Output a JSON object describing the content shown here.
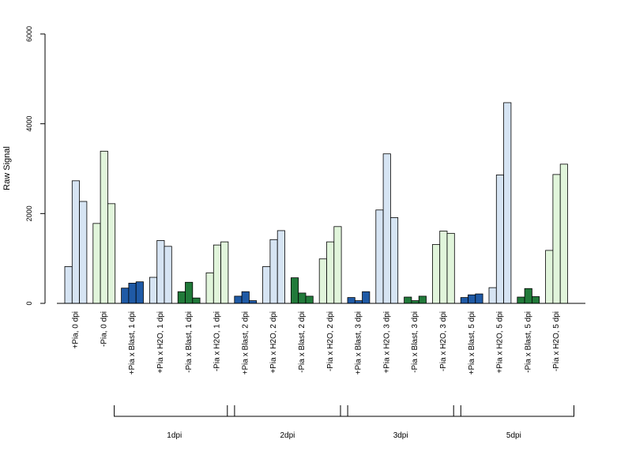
{
  "chart_data": {
    "type": "bar",
    "ylabel": "Raw Signal",
    "xlabel": "",
    "ylim": [
      0,
      6000
    ],
    "yticks": [
      0,
      2000,
      4000,
      6000
    ],
    "bars_per_group": 3,
    "categories": [
      "+Pia, 0 dpi",
      "-Pia, 0 dpi",
      "+Pia x Blast, 1 dpi",
      "+Pia x H2O, 1 dpi",
      "-Pia x Blast, 1 dpi",
      "-Pia x H2O, 1 dpi",
      "+Pia x Blast, 2 dpi",
      "+Pia x H2O, 2 dpi",
      "-Pia x Blast, 2 dpi",
      "-Pia x H2O, 2 dpi",
      "+Pia x Blast, 3 dpi",
      "+Pia x H2O, 3 dpi",
      "-Pia x Blast, 3 dpi",
      "-Pia x H2O, 3 dpi",
      "+Pia x Blast, 5 dpi",
      "+Pia x H2O, 5 dpi",
      "-Pia x Blast, 5 dpi",
      "-Pia x H2O, 5 dpi"
    ],
    "values": [
      [
        820,
        2730,
        2270
      ],
      [
        1780,
        3390,
        2220
      ],
      [
        340,
        450,
        480
      ],
      [
        580,
        1400,
        1270
      ],
      [
        260,
        470,
        120
      ],
      [
        680,
        1300,
        1370
      ],
      [
        160,
        260,
        60
      ],
      [
        820,
        1420,
        1620
      ],
      [
        570,
        230,
        160
      ],
      [
        990,
        1370,
        1710
      ],
      [
        130,
        60,
        260
      ],
      [
        2080,
        3330,
        1910
      ],
      [
        140,
        60,
        160
      ],
      [
        1310,
        1610,
        1560
      ],
      [
        130,
        190,
        210
      ],
      [
        350,
        2860,
        4470
      ],
      [
        140,
        330,
        150
      ],
      [
        1180,
        2870,
        3100
      ]
    ],
    "colors": [
      "#d6e4f3",
      "#e1f5db",
      "#1f5aa6",
      "#d6e4f3",
      "#217a3a",
      "#e1f5db",
      "#1f5aa6",
      "#d6e4f3",
      "#217a3a",
      "#e1f5db",
      "#1f5aa6",
      "#d6e4f3",
      "#217a3a",
      "#e1f5db",
      "#1f5aa6",
      "#d6e4f3",
      "#217a3a",
      "#e1f5db"
    ],
    "brackets": [
      {
        "label": "1dpi",
        "from": 2,
        "to": 5
      },
      {
        "label": "2dpi",
        "from": 6,
        "to": 9
      },
      {
        "label": "3dpi",
        "from": 10,
        "to": 13
      },
      {
        "label": "5dpi",
        "from": 14,
        "to": 17
      }
    ]
  }
}
